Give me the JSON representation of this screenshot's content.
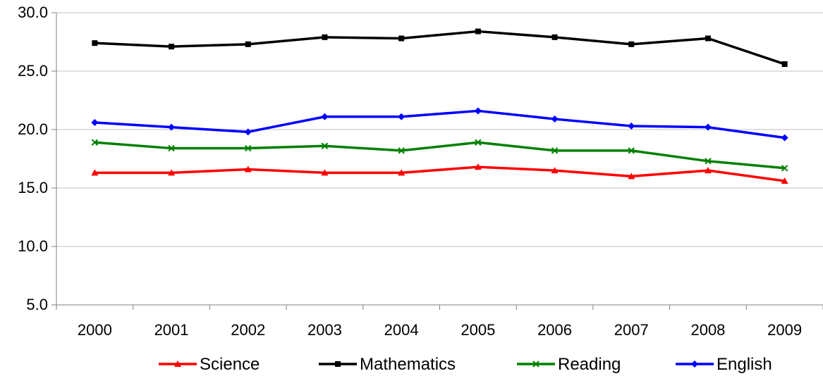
{
  "chart_data": {
    "type": "line",
    "title": "",
    "xlabel": "",
    "ylabel": "",
    "categories": [
      "2000",
      "2001",
      "2002",
      "2003",
      "2004",
      "2005",
      "2006",
      "2007",
      "2008",
      "2009"
    ],
    "ylim": [
      5.0,
      30.0
    ],
    "yticks": [
      "5.0",
      "10.0",
      "15.0",
      "20.0",
      "25.0",
      "30.0"
    ],
    "ytick_values": [
      5,
      10,
      15,
      20,
      25,
      30
    ],
    "grid": "horizontal",
    "legend_position": "bottom",
    "series": [
      {
        "name": "Science",
        "color": "#ff0000",
        "marker": "triangle",
        "values": [
          16.3,
          16.3,
          16.6,
          16.3,
          16.3,
          16.8,
          16.5,
          16.0,
          16.5,
          15.6
        ]
      },
      {
        "name": "Mathematics",
        "color": "#000000",
        "marker": "square",
        "values": [
          27.4,
          27.1,
          27.3,
          27.9,
          27.8,
          28.4,
          27.9,
          27.3,
          27.8,
          25.6
        ]
      },
      {
        "name": "Reading",
        "color": "#008000",
        "marker": "x",
        "values": [
          18.9,
          18.4,
          18.4,
          18.6,
          18.2,
          18.9,
          18.2,
          18.2,
          17.3,
          16.7
        ]
      },
      {
        "name": "English",
        "color": "#0000ff",
        "marker": "diamond",
        "values": [
          20.6,
          20.2,
          19.8,
          21.1,
          21.1,
          21.6,
          20.9,
          20.3,
          20.2,
          19.3
        ]
      }
    ]
  }
}
